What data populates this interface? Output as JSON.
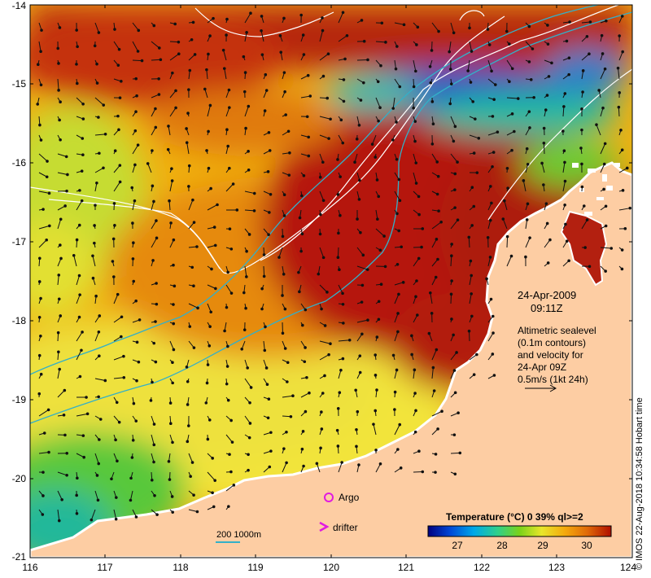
{
  "date_label": "24-Apr-2009",
  "time_label": "09:11Z",
  "altimetry_note": [
    "Altimetric sealevel",
    "(0.1m contours)",
    "and velocity for",
    "24-Apr 09Z",
    "0.5m/s (1kt 24h)"
  ],
  "legend": {
    "argo_label": "Argo",
    "drifter_label": "drifter",
    "argo_color": "#e01be0",
    "drifter_color": "#e01be0"
  },
  "scale_bar": {
    "label": "200  1000m",
    "color": "#33b0c8"
  },
  "colorbar": {
    "title": "Temperature (°C) 0 39% ql>=2",
    "ticks": [
      "27",
      "28",
      "29",
      "30"
    ],
    "min": 26.5,
    "max": 30.5,
    "colors": [
      "#000080",
      "#0047d6",
      "#00a8e8",
      "#2fd08a",
      "#7ad21a",
      "#e8e62a",
      "#f4a80c",
      "#e06a08",
      "#b00e00"
    ]
  },
  "credit": "© IMOS 22-Aug-2018 10:34:58 Hobart time",
  "axes": {
    "x_ticks": [
      "116",
      "117",
      "118",
      "119",
      "120",
      "121",
      "122",
      "123",
      "124"
    ],
    "y_ticks": [
      "-14",
      "-15",
      "-16",
      "-17",
      "-18",
      "-19",
      "-20",
      "-21"
    ],
    "lon_range": [
      116,
      124
    ],
    "lat_range": [
      -21,
      -14
    ]
  },
  "colors": {
    "land": "#fdcda3",
    "coast": "#ffffff",
    "contour": "#ffffff",
    "isobath": "#33b0c8"
  }
}
